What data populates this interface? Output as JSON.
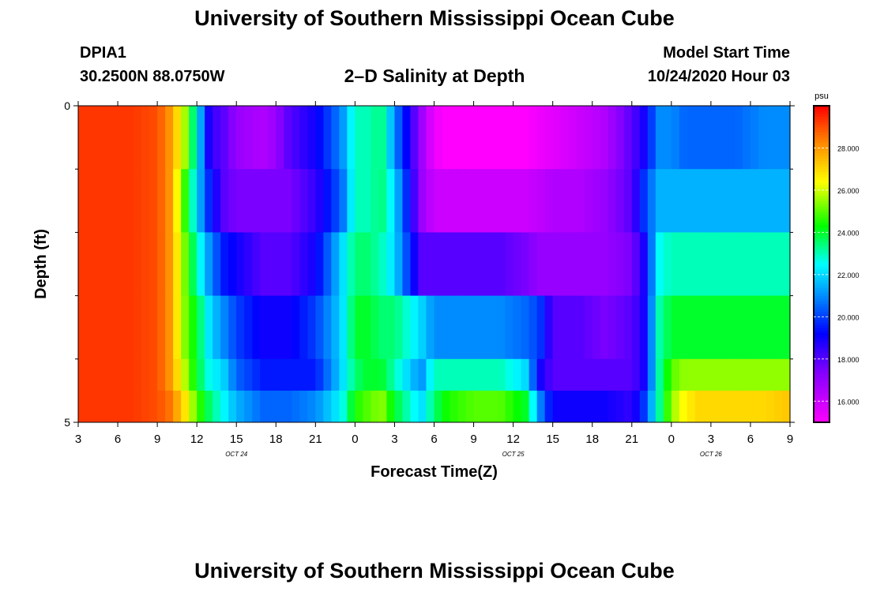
{
  "header": {
    "title": "University of Southern Mississippi Ocean Cube",
    "station": "DPIA1",
    "coords": "30.2500N 88.0750W",
    "subtitle": "2–D Salinity at Depth",
    "model_start_label": "Model Start Time",
    "model_start_value": "10/24/2020 Hour 03"
  },
  "footer": {
    "title": "University of Southern Mississippi Ocean Cube"
  },
  "chart_data": {
    "type": "heatmap",
    "title": "2–D Salinity at Depth",
    "xlabel": "Forecast Time(Z)",
    "ylabel": "Depth (ft)",
    "x_tick_labels": [
      "3",
      "6",
      "9",
      "12",
      "15",
      "18",
      "21",
      "0",
      "3",
      "6",
      "9",
      "12",
      "15",
      "18",
      "21",
      "0",
      "3",
      "6",
      "9"
    ],
    "date_labels": [
      {
        "label": "OCT 24",
        "under_tick": 4
      },
      {
        "label": "OCT 25",
        "under_tick": 11
      },
      {
        "label": "OCT 26",
        "under_tick": 16
      }
    ],
    "y_tick_labels": [
      "0",
      "5"
    ],
    "ylim": [
      0,
      5
    ],
    "x_range_hours": [
      0,
      54
    ],
    "colorbar": {
      "unit": "psu",
      "range": [
        15,
        30
      ],
      "tick_labels": [
        "16.000",
        "18.000",
        "20.000",
        "22.000",
        "24.000",
        "26.000",
        "28.000"
      ],
      "tick_values": [
        16,
        18,
        20,
        22,
        24,
        26,
        28
      ]
    },
    "layer_top_depths_ft": [
      0,
      1,
      2,
      3,
      4,
      4.5
    ],
    "key_times_hours": [
      0,
      4,
      6,
      7,
      8,
      9,
      10,
      11,
      12,
      14,
      15,
      16,
      18,
      20,
      21,
      22,
      23,
      24,
      26,
      27,
      28,
      30,
      32,
      34,
      35,
      36,
      38,
      40,
      42,
      43,
      44,
      45,
      46,
      47,
      48,
      50,
      52,
      54
    ],
    "salinity_psu": [
      [
        29.3,
        29.3,
        29,
        28,
        26,
        22.5,
        18.5,
        18,
        17,
        16.5,
        17,
        18,
        19,
        21,
        23,
        23,
        23.5,
        21,
        17,
        15.3,
        15,
        15,
        15,
        15,
        15.3,
        15.5,
        16,
        16.5,
        18,
        19,
        21,
        21,
        20.5,
        20.5,
        20.5,
        20.5,
        21,
        21
      ],
      [
        29.3,
        29.3,
        29,
        28,
        25,
        22,
        19.5,
        18,
        17.5,
        17.5,
        17.5,
        17.5,
        18.5,
        20.5,
        23,
        23,
        23.5,
        22,
        17,
        16,
        16,
        16,
        16,
        16,
        16.2,
        16.5,
        16.5,
        17,
        18,
        20,
        21.5,
        21.5,
        21.5,
        21.5,
        21.5,
        21.5,
        21.5,
        21.5
      ],
      [
        29.3,
        29.3,
        29,
        28,
        25.5,
        23,
        21,
        19.5,
        19,
        18,
        18,
        18,
        19,
        22,
        23.5,
        23.5,
        23,
        22,
        18,
        18,
        18,
        18,
        18,
        17.5,
        17,
        17,
        17,
        17,
        17.5,
        19,
        22.5,
        23,
        23,
        23,
        23,
        23,
        23,
        23
      ],
      [
        29.3,
        29.3,
        29,
        28,
        25.5,
        24,
        22,
        21,
        20,
        19,
        19,
        19,
        20,
        22,
        24,
        24,
        23.5,
        23.5,
        22,
        21,
        21,
        21,
        21,
        20.5,
        20,
        18,
        18,
        17.5,
        18,
        19,
        23,
        24,
        24,
        24,
        24,
        24,
        24,
        24
      ],
      [
        29.3,
        29.3,
        29,
        28,
        26,
        24,
        22.5,
        22,
        20.5,
        19.5,
        19.5,
        19.5,
        19.5,
        22,
        23.5,
        24,
        24,
        23,
        21,
        23,
        23,
        23,
        23,
        22,
        19,
        18,
        18,
        18,
        18,
        19,
        23,
        25,
        25.5,
        25.5,
        25.5,
        25.5,
        25.5,
        25.5
      ],
      [
        29.3,
        29.3,
        29,
        28.5,
        27,
        25,
        23.5,
        22.5,
        21.5,
        20.5,
        20.5,
        20.5,
        21,
        22.5,
        24.5,
        25,
        25.5,
        24,
        22,
        23.5,
        24.5,
        25,
        25,
        24,
        21,
        19,
        19,
        19,
        18.5,
        20,
        23,
        25.5,
        26.5,
        27,
        27,
        27,
        27,
        27.3
      ]
    ]
  }
}
